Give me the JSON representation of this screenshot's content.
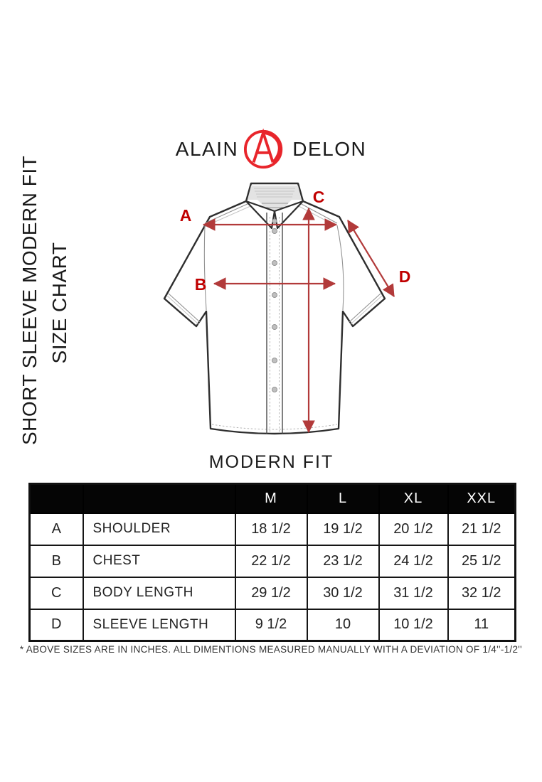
{
  "colors": {
    "brand_red": "#e8252b",
    "arrow_red": "#b23a3a",
    "label_red": "#c00000",
    "table_header_bg": "#050505",
    "ink": "#1a1a1a"
  },
  "logo": {
    "word_left": "ALAIN",
    "word_right": "DELON",
    "monogram": "AD"
  },
  "side_title": {
    "line1": "SHORT SLEEVE MODERN FIT",
    "line2": "SIZE CHART"
  },
  "diagram": {
    "labels": [
      "A",
      "B",
      "C",
      "D"
    ]
  },
  "fit_title": "MODERN FIT",
  "size_table": {
    "columns": [
      "M",
      "L",
      "XL",
      "XXL"
    ],
    "rows": [
      {
        "key": "A",
        "name": "SHOULDER",
        "values": [
          "18 1/2",
          "19 1/2",
          "20 1/2",
          "21 1/2"
        ]
      },
      {
        "key": "B",
        "name": "CHEST",
        "values": [
          "22 1/2",
          "23 1/2",
          "24 1/2",
          "25 1/2"
        ]
      },
      {
        "key": "C",
        "name": "BODY LENGTH",
        "values": [
          "29 1/2",
          "30 1/2",
          "31 1/2",
          "32 1/2"
        ]
      },
      {
        "key": "D",
        "name": "SLEEVE LENGTH",
        "values": [
          "9 1/2",
          "10",
          "10 1/2",
          "11"
        ]
      }
    ]
  },
  "footnote": "* ABOVE SIZES ARE IN INCHES. ALL DIMENTIONS MEASURED MANUALLY WITH A DEVIATION OF 1/4''-1/2''"
}
